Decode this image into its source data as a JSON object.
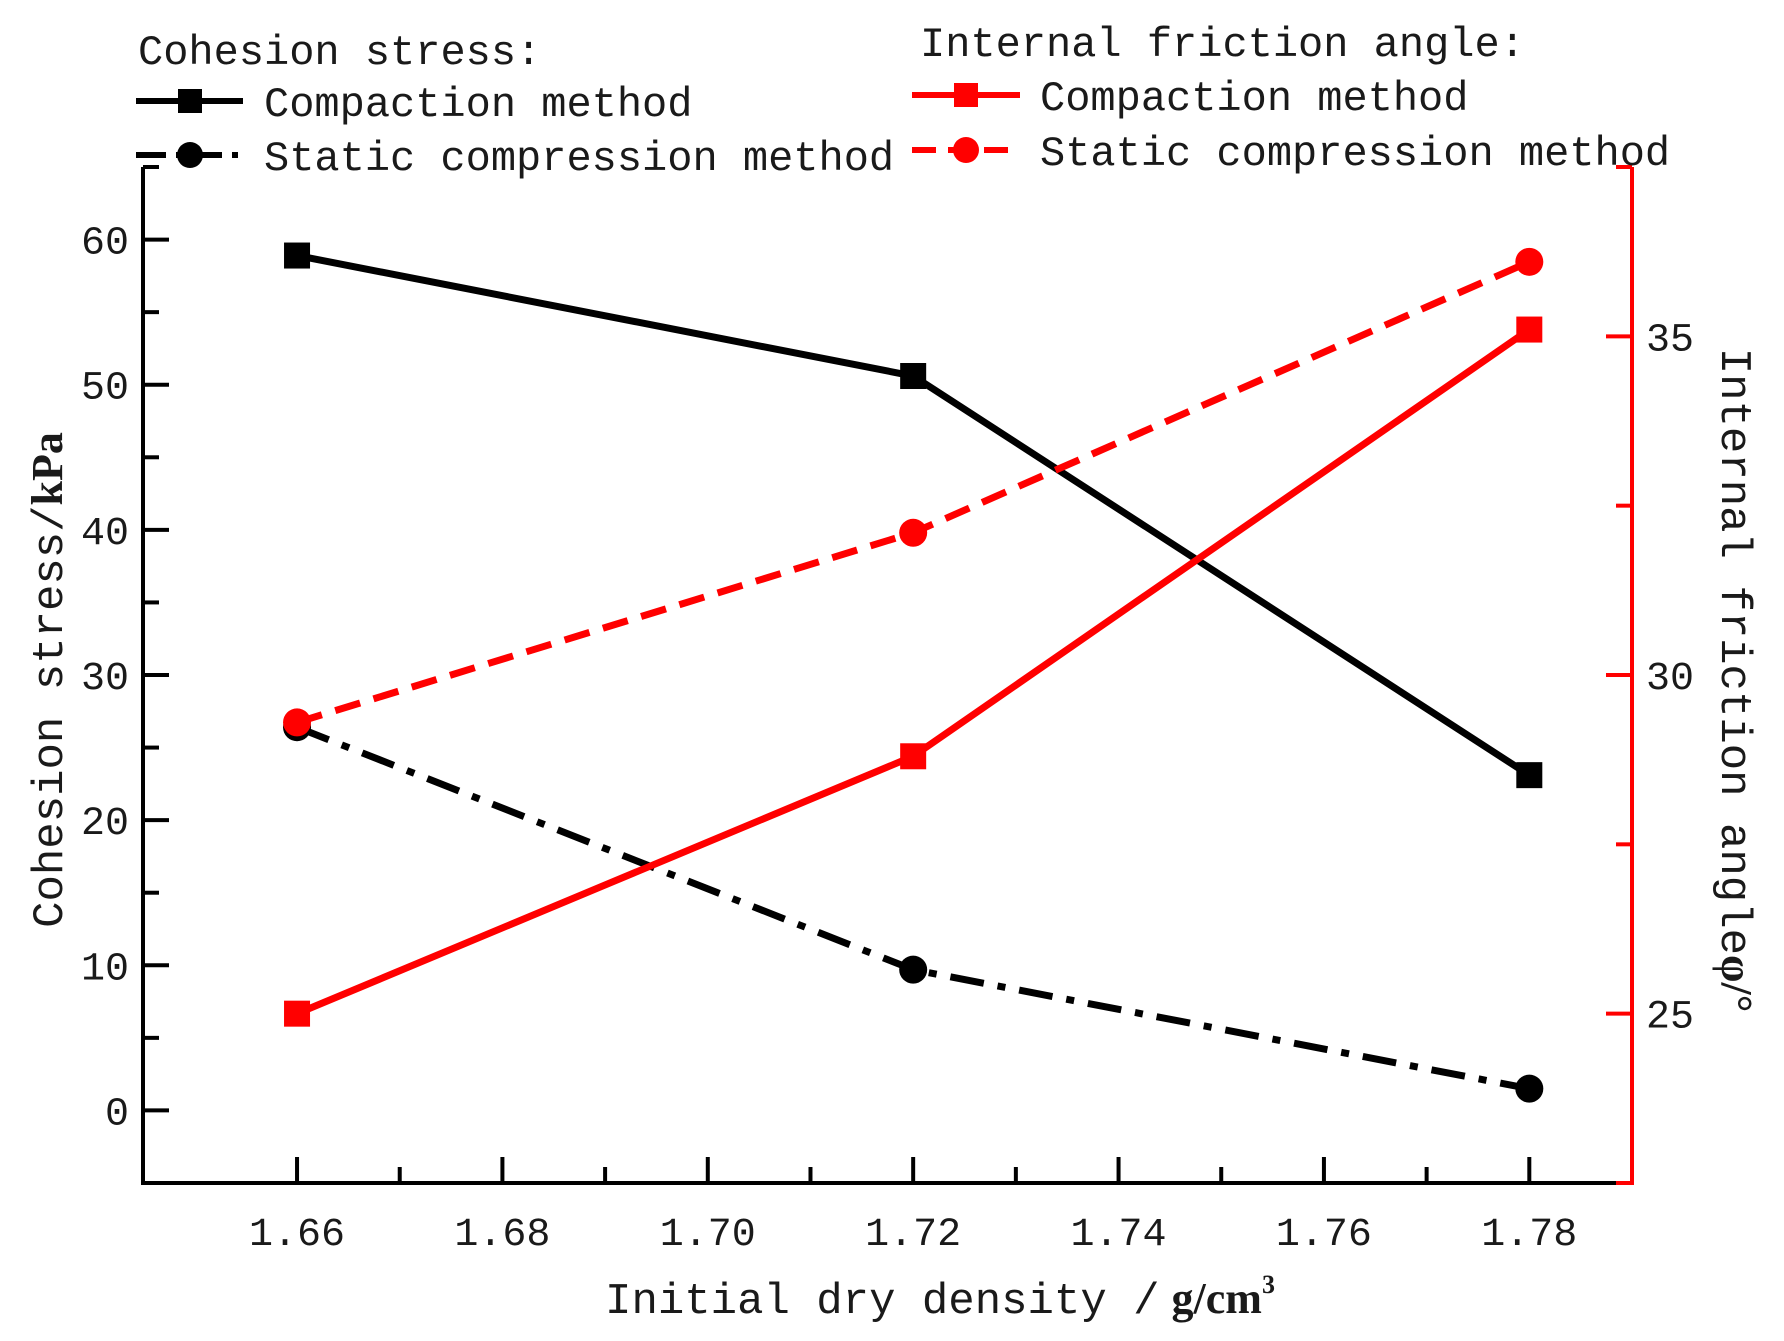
{
  "chart_data": {
    "type": "line",
    "x": [
      1.66,
      1.72,
      1.78
    ],
    "xlabel": "Initial dry density /",
    "xlabel_unit": "g/cm",
    "xlabel_unit_sup": "3",
    "xlim": [
      1.645,
      1.79
    ],
    "xticks": [
      1.66,
      1.68,
      1.7,
      1.72,
      1.74,
      1.76,
      1.78
    ],
    "xtick_labels": [
      "1.66",
      "1.68",
      "1.70",
      "1.72",
      "1.74",
      "1.76",
      "1.78"
    ],
    "ylabel_left": "Cohesion stress/",
    "ylabel_left_unit": "kPa",
    "ylim_left": [
      -5,
      65
    ],
    "yticks_left": [
      0,
      10,
      20,
      30,
      40,
      50,
      60
    ],
    "ytick_labels_left": [
      "0",
      "10",
      "20",
      "30",
      "40",
      "50",
      "60"
    ],
    "ylabel_right": "Internal friction angle",
    "ylabel_right_unit": "φ/°",
    "ylim_right": [
      22.5,
      37.5
    ],
    "yticks_right": [
      25,
      30,
      35
    ],
    "ytick_labels_right": [
      "25",
      "30",
      "35"
    ],
    "legend_groups": [
      {
        "title": "Cohesion stress:",
        "position": "top-left"
      },
      {
        "title": "Internal friction angle:",
        "position": "top-right"
      }
    ],
    "series": [
      {
        "name": "Compaction method",
        "group": "Cohesion stress",
        "axis": "left",
        "values": [
          58.9,
          50.6,
          23.1
        ],
        "color": "#000000",
        "marker": "square",
        "line": "solid"
      },
      {
        "name": "Static compression method",
        "group": "Cohesion stress",
        "axis": "left",
        "values": [
          26.4,
          9.7,
          1.5
        ],
        "color": "#000000",
        "marker": "circle",
        "line": "dashdot"
      },
      {
        "name": "Compaction method",
        "group": "Internal friction angle",
        "axis": "right",
        "values": [
          25.0,
          28.8,
          35.1
        ],
        "color": "#ff0000",
        "marker": "square",
        "line": "solid"
      },
      {
        "name": "Static compression method",
        "group": "Internal friction angle",
        "axis": "right",
        "values": [
          29.3,
          32.1,
          36.1
        ],
        "color": "#ff0000",
        "marker": "circle",
        "line": "dashed"
      }
    ]
  }
}
